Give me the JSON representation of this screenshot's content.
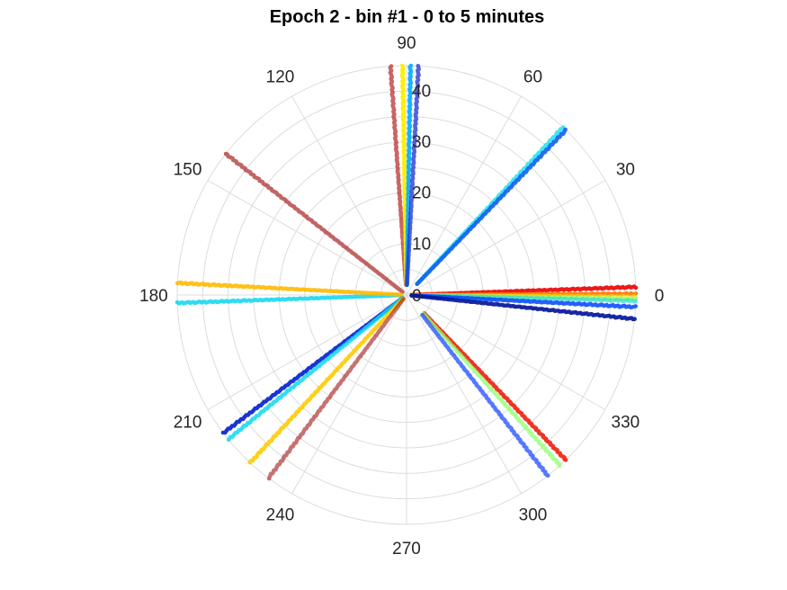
{
  "chart_data": {
    "type": "scatter",
    "subtype": "polar",
    "title": "Epoch 2 - bin #1 - 0 to 5 minutes",
    "angle_unit": "degrees",
    "angle_ticks": [
      "0",
      "30",
      "60",
      "90",
      "120",
      "150",
      "180",
      "210",
      "240",
      "270",
      "300",
      "330"
    ],
    "radial_ticks": [
      "0",
      "10",
      "20",
      "30",
      "40"
    ],
    "rlim": [
      0,
      45
    ],
    "grid": true,
    "colormap": "jet",
    "series": [
      {
        "theta": 94,
        "r": [
          2,
          45
        ],
        "color": "#aa0000",
        "opacity": 0.6
      },
      {
        "theta": 91,
        "r": [
          2,
          45
        ],
        "color": "#ffee00",
        "opacity": 0.95
      },
      {
        "theta": 89,
        "r": [
          2,
          45
        ],
        "color": "#00aaff",
        "opacity": 0.9
      },
      {
        "theta": 87,
        "r": [
          2,
          45
        ],
        "color": "#1a2fd0",
        "opacity": 0.75
      },
      {
        "theta": 47,
        "r": [
          3,
          45
        ],
        "color": "#22e0f0",
        "opacity": 0.85
      },
      {
        "theta": 46,
        "r": [
          3,
          45
        ],
        "color": "#1060f0",
        "opacity": 0.9
      },
      {
        "theta": 142,
        "r": [
          1,
          45
        ],
        "color": "#990000",
        "opacity": 0.6
      },
      {
        "theta": 2,
        "r": [
          1,
          45
        ],
        "color": "#ee0000",
        "opacity": 0.9
      },
      {
        "theta": 0.3,
        "r": [
          1,
          45
        ],
        "color": "#ff7700",
        "opacity": 0.9
      },
      {
        "theta": -0.5,
        "r": [
          1,
          45
        ],
        "color": "#ffee00",
        "opacity": 0.6
      },
      {
        "theta": -1,
        "r": [
          1,
          45
        ],
        "color": "#80ff80",
        "opacity": 0.7
      },
      {
        "theta": -1.5,
        "r": [
          1,
          45
        ],
        "color": "#30d8d0",
        "opacity": 0.7
      },
      {
        "theta": -3,
        "r": [
          1,
          45
        ],
        "color": "#0044ff",
        "opacity": 0.85
      },
      {
        "theta": -6,
        "r": [
          1,
          45
        ],
        "color": "#001199",
        "opacity": 0.9
      },
      {
        "theta": 182,
        "r": [
          1,
          45
        ],
        "color": "#1ad8f0",
        "opacity": 0.9
      },
      {
        "theta": 177,
        "r": [
          1,
          45
        ],
        "color": "#ffbb00",
        "opacity": 0.9
      },
      {
        "theta": 217,
        "r": [
          1,
          45
        ],
        "color": "#0020d0",
        "opacity": 0.9
      },
      {
        "theta": 219,
        "r": [
          1,
          45
        ],
        "color": "#10d8f0",
        "opacity": 0.85
      },
      {
        "theta": 227,
        "r": [
          1,
          45
        ],
        "color": "#ffcc00",
        "opacity": 0.9
      },
      {
        "theta": 233,
        "r": [
          1,
          45
        ],
        "color": "#990000",
        "opacity": 0.55
      },
      {
        "theta": 314,
        "r": [
          5,
          45
        ],
        "color": "#ee1100",
        "opacity": 0.85
      },
      {
        "theta": 312,
        "r": [
          5,
          45
        ],
        "color": "#90ff70",
        "opacity": 0.75
      },
      {
        "theta": 308,
        "r": [
          5,
          45
        ],
        "color": "#1040ff",
        "opacity": 0.7
      }
    ]
  }
}
